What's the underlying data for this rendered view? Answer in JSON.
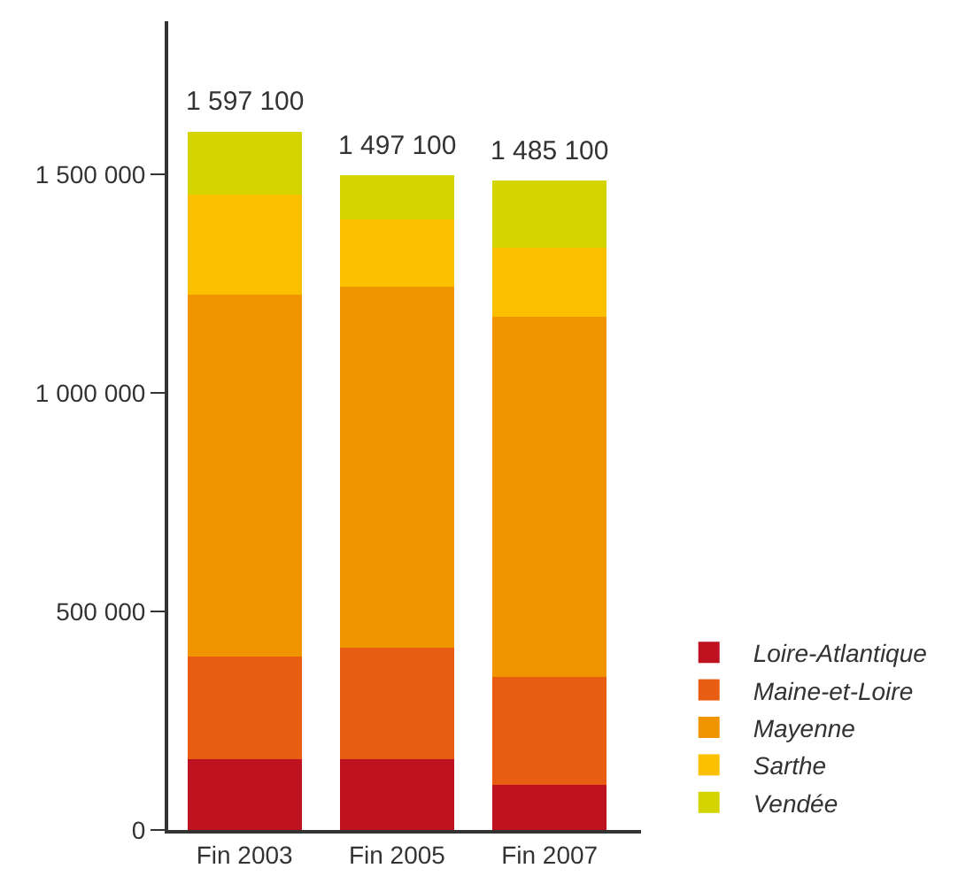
{
  "chart_data": {
    "type": "bar",
    "stacked": true,
    "categories": [
      "Fin 2003",
      "Fin 2005",
      "Fin 2007"
    ],
    "series": [
      {
        "name": "Loire-Atlantique",
        "color": "#be1220",
        "values": [
          161000,
          161000,
          104000
        ]
      },
      {
        "name": "Maine-et-Loire",
        "color": "#e85d12",
        "values": [
          235000,
          255000,
          247000
        ]
      },
      {
        "name": "Mayenne",
        "color": "#f09400",
        "values": [
          828000,
          827000,
          823000
        ]
      },
      {
        "name": "Sarthe",
        "color": "#fbc100",
        "values": [
          229000,
          154000,
          158000
        ]
      },
      {
        "name": "Vendée",
        "color": "#d4d500",
        "values": [
          144100,
          100100,
          153100
        ]
      }
    ],
    "totals": [
      "1 597 100",
      "1 497 100",
      "1 485 100"
    ],
    "ylim": [
      0,
      1850000
    ],
    "yticks": [
      {
        "value": 0,
        "label": "0"
      },
      {
        "value": 500000,
        "label": "500 000"
      },
      {
        "value": 1000000,
        "label": "1 000 000"
      },
      {
        "value": 1500000,
        "label": "1 500 000"
      }
    ],
    "grid": false,
    "legend": "bottom right"
  }
}
